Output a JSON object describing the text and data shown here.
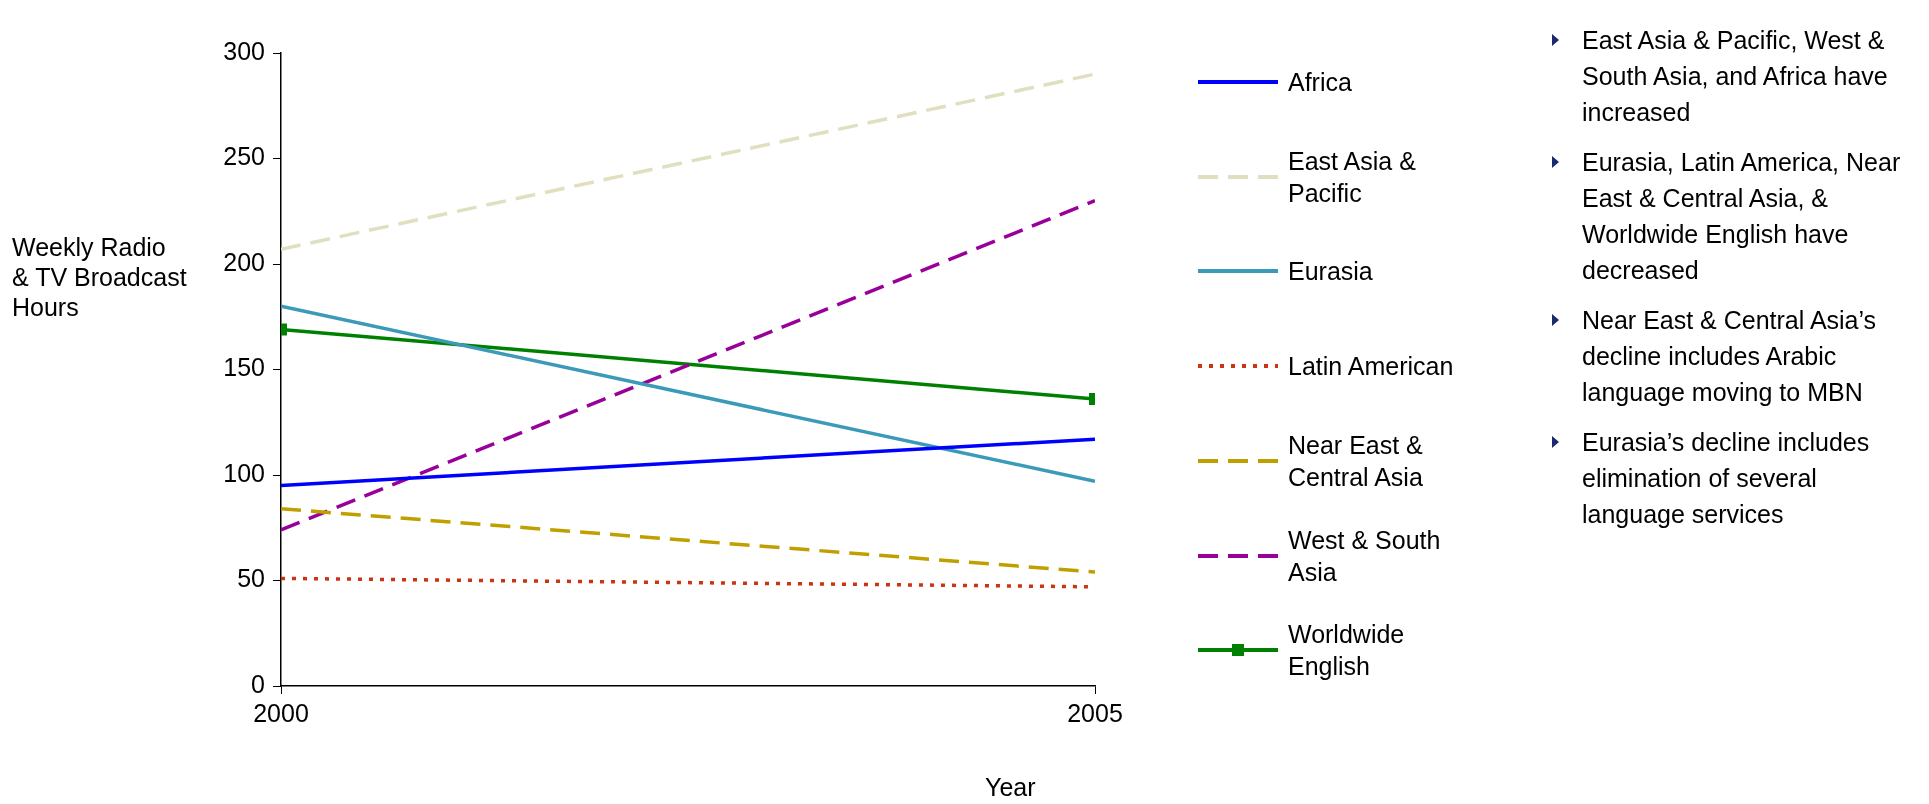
{
  "chart_data": {
    "type": "line",
    "xlabel": "Year",
    "ylabel": "Weekly Radio & TV Broadcast Hours",
    "x": [
      2000,
      2005
    ],
    "xlim": [
      2000,
      2005
    ],
    "xticks": [
      2000,
      2005
    ],
    "ylim": [
      0,
      300
    ],
    "yticks": [
      0,
      50,
      100,
      150,
      200,
      250,
      300
    ],
    "grid": false,
    "legend": "right",
    "marker": "none",
    "series": [
      {
        "name": "Africa",
        "color": "#0000ff",
        "values": [
          95,
          117
        ],
        "line_style": "solid"
      },
      {
        "name": "East Asia & Pacific",
        "color": "#e0dfc0",
        "values": [
          207,
          290
        ],
        "line_style": "dashed"
      },
      {
        "name": "Eurasia",
        "color": "#3a9ab8",
        "values": [
          180,
          97
        ],
        "line_style": "solid"
      },
      {
        "name": "Latin American",
        "color": "#cc3311",
        "values": [
          51,
          47
        ],
        "line_style": "dotted"
      },
      {
        "name": "Near East & Central Asia",
        "color": "#c0a000",
        "values": [
          84,
          54
        ],
        "line_style": "dashed"
      },
      {
        "name": "West & South Asia",
        "color": "#990099",
        "values": [
          74,
          230
        ],
        "line_style": "dashed"
      },
      {
        "name": "Worldwide English",
        "color": "#008000",
        "values": [
          169,
          136
        ],
        "line_style": "solid",
        "marker": "square"
      }
    ],
    "annotations": [
      "East Asia & Pacific, West & South Asia, and Africa have increased",
      "Eurasia, Latin America, Near East & Central Asia, & Worldwide English have decreased",
      "Near East & Central Asia’s decline includes Arabic language moving to MBN",
      "Eurasia’s decline includes elimination of several language services"
    ]
  }
}
